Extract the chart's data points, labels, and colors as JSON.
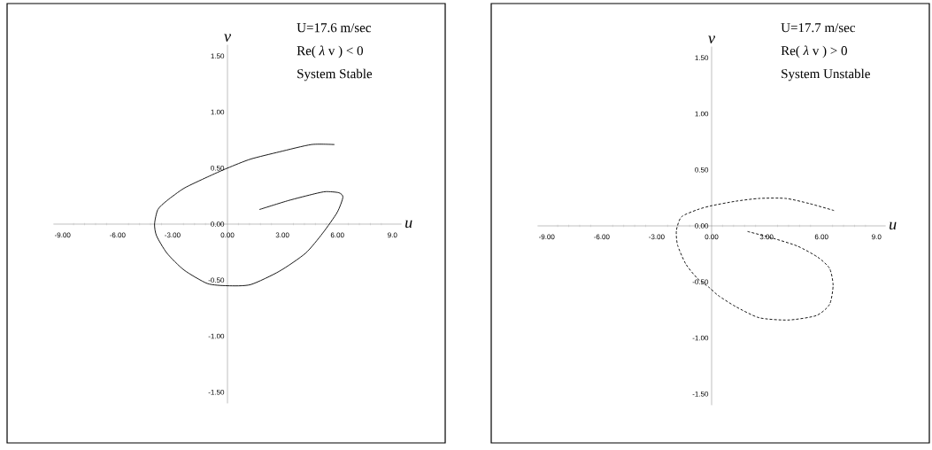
{
  "chart_data": [
    {
      "type": "line",
      "xlabel": "u",
      "ylabel": "v",
      "xlim": [
        -9.5,
        9.5
      ],
      "ylim": [
        -1.6,
        1.6
      ],
      "xticks": [
        {
          "value": -9,
          "label": "-9.00"
        },
        {
          "value": -6,
          "label": "-6.00"
        },
        {
          "value": -3,
          "label": "-3.00"
        },
        {
          "value": 0,
          "label": "0.00"
        },
        {
          "value": 3,
          "label": "3.00"
        },
        {
          "value": 6,
          "label": "6.00"
        },
        {
          "value": 9,
          "label": "9.0"
        }
      ],
      "yticks": [
        {
          "value": -1.5,
          "label": "-1.50"
        },
        {
          "value": -1,
          "label": "-1.00"
        },
        {
          "value": -0.5,
          "label": "-0.50"
        },
        {
          "value": 0,
          "label": "0.00"
        },
        {
          "value": 0.5,
          "label": "0.50"
        },
        {
          "value": 1,
          "label": "1.00"
        },
        {
          "value": 1.5,
          "label": "1.50"
        }
      ],
      "annotations": [
        "U=17.6 m/sec",
        "Re( *λ* v ) < 0",
        "System Stable"
      ],
      "marker": "none",
      "line_style": "solid",
      "series": [
        {
          "color": "#000000",
          "x": [
            5.84,
            4.58,
            2.84,
            1.26,
            0,
            -1.1,
            -2.37,
            -3.3,
            -3.8,
            -3.98,
            -3.87,
            -3.3,
            -2.37,
            -1.1,
            0,
            1.26,
            2.84,
            4.26,
            5.2,
            5.99,
            6.3,
            6.08,
            5.37,
            4.74,
            3.32,
            1.74
          ],
          "values": [
            0.71,
            0.71,
            0.645,
            0.58,
            0.5,
            0.42,
            0.32,
            0.21,
            0.13,
            0,
            -0.105,
            -0.26,
            -0.41,
            -0.53,
            -0.55,
            -0.54,
            -0.42,
            -0.26,
            -0.08,
            0.105,
            0.24,
            0.28,
            0.29,
            0.27,
            0.21,
            0.13
          ]
        }
      ]
    },
    {
      "type": "line",
      "xlabel": "u",
      "ylabel": "v",
      "xlim": [
        -9.5,
        9.5
      ],
      "ylim": [
        -1.6,
        1.6
      ],
      "xticks": [
        {
          "value": -9,
          "label": "-9.00"
        },
        {
          "value": -6,
          "label": "-6.00"
        },
        {
          "value": -3,
          "label": "-3.00"
        },
        {
          "value": 0,
          "label": "0.00"
        },
        {
          "value": 3,
          "label": "3.00"
        },
        {
          "value": 6,
          "label": "6.00"
        },
        {
          "value": 9,
          "label": "9.0"
        }
      ],
      "yticks": [
        {
          "value": -1.5,
          "label": "-1.50"
        },
        {
          "value": -1,
          "label": "-1.00"
        },
        {
          "value": -0.5,
          "label": "-0.50"
        },
        {
          "value": 0,
          "label": "0.00"
        },
        {
          "value": 0.5,
          "label": "0.50"
        },
        {
          "value": 1,
          "label": "1.00"
        },
        {
          "value": 1.5,
          "label": "1.50"
        }
      ],
      "annotations": [
        "U=17.7 m/sec",
        "Re( *λ* v ) > 0",
        "System Unstable"
      ],
      "marker": "none",
      "line_style": "dashed",
      "series": [
        {
          "color": "#000000",
          "x": [
            1.96,
            3.24,
            4.68,
            5.8,
            6.44,
            6.63,
            6.44,
            5.72,
            4.2,
            2.6,
            1.31,
            0.35,
            -0.13,
            -0.77,
            -1.41,
            -1.86,
            -1.92,
            -1.65,
            -0.77,
            0,
            1.31,
            2.6,
            4.04,
            5.32,
            6.68
          ],
          "values": [
            -0.05,
            -0.105,
            -0.18,
            -0.28,
            -0.38,
            -0.53,
            -0.7,
            -0.8,
            -0.84,
            -0.82,
            -0.72,
            -0.62,
            -0.55,
            -0.47,
            -0.34,
            -0.17,
            -0.04,
            0.08,
            0.145,
            0.18,
            0.22,
            0.245,
            0.245,
            0.2,
            0.137
          ]
        }
      ]
    }
  ]
}
